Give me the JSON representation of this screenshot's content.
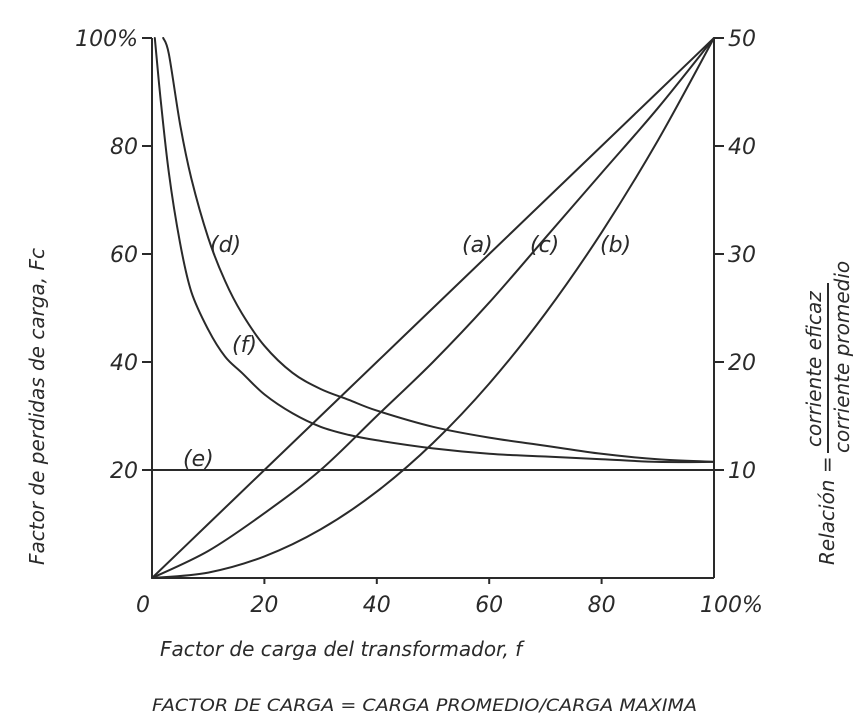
{
  "chart_data": {
    "type": "line",
    "xlabel": "Factor de carga del transformador, f",
    "ylabel_left": "Factor de perdidas de carga, Fc",
    "ylabel_right_prefix": "Relación =",
    "ylabel_right_numerator": "corriente eficaz",
    "ylabel_right_denominator": "corriente promedio",
    "caption": "FACTOR DE CARGA = CARGA PROMEDIO/CARGA MAXIMA",
    "xlim": [
      0,
      100
    ],
    "ylim_left": [
      0,
      100
    ],
    "ylim_right": [
      0,
      50
    ],
    "x_ticks": [
      "0",
      "20",
      "40",
      "60",
      "80",
      "100%"
    ],
    "x_tick_values": [
      0,
      20,
      40,
      60,
      80,
      100
    ],
    "y_left_ticks": [
      "20",
      "40",
      "60",
      "80",
      "100%"
    ],
    "y_left_tick_values": [
      20,
      40,
      60,
      80,
      100
    ],
    "y_right_ticks": [
      "10",
      "20",
      "30",
      "40",
      "50"
    ],
    "y_right_tick_values": [
      10,
      20,
      30,
      40,
      50
    ],
    "series": [
      {
        "name": "(a)",
        "axis": "left",
        "x": [
          0,
          10,
          20,
          30,
          40,
          50,
          60,
          70,
          80,
          90,
          100
        ],
        "y": [
          0,
          10,
          20,
          30,
          40,
          50,
          60,
          70,
          80,
          90,
          100
        ]
      },
      {
        "name": "(c)",
        "axis": "left",
        "x": [
          0,
          10,
          20,
          30,
          40,
          50,
          60,
          70,
          80,
          90,
          100
        ],
        "y": [
          0,
          5,
          12,
          20,
          30,
          40,
          51,
          63,
          75,
          87,
          100
        ]
      },
      {
        "name": "(b)",
        "axis": "left",
        "x": [
          0,
          10,
          20,
          30,
          40,
          50,
          60,
          70,
          80,
          90,
          100
        ],
        "y": [
          0,
          1,
          4,
          9,
          16,
          25,
          36,
          49,
          64,
          81,
          100
        ]
      },
      {
        "name": "(e)",
        "axis": "left",
        "x": [
          0,
          100
        ],
        "y": [
          20,
          20
        ]
      },
      {
        "name": "(d)",
        "axis": "left",
        "x": [
          2,
          3,
          5,
          7,
          10,
          13,
          16,
          20,
          25,
          30,
          35,
          40,
          50,
          60,
          70,
          80,
          90,
          100
        ],
        "y": [
          100,
          97,
          84,
          74,
          63,
          55,
          49,
          43,
          38,
          35,
          33,
          31,
          28,
          26,
          24.5,
          23,
          22,
          21.5
        ]
      },
      {
        "name": "(f)",
        "axis": "left",
        "x": [
          0.5,
          1.5,
          3,
          5,
          7,
          10,
          13,
          16,
          20,
          25,
          30,
          35,
          40,
          50,
          60,
          70,
          80,
          90,
          100
        ],
        "y": [
          100,
          89,
          75,
          62,
          53,
          46,
          41,
          38,
          34,
          30.5,
          28,
          26.5,
          25.5,
          24,
          23,
          22.5,
          22,
          21.5,
          21.5
        ]
      }
    ]
  }
}
